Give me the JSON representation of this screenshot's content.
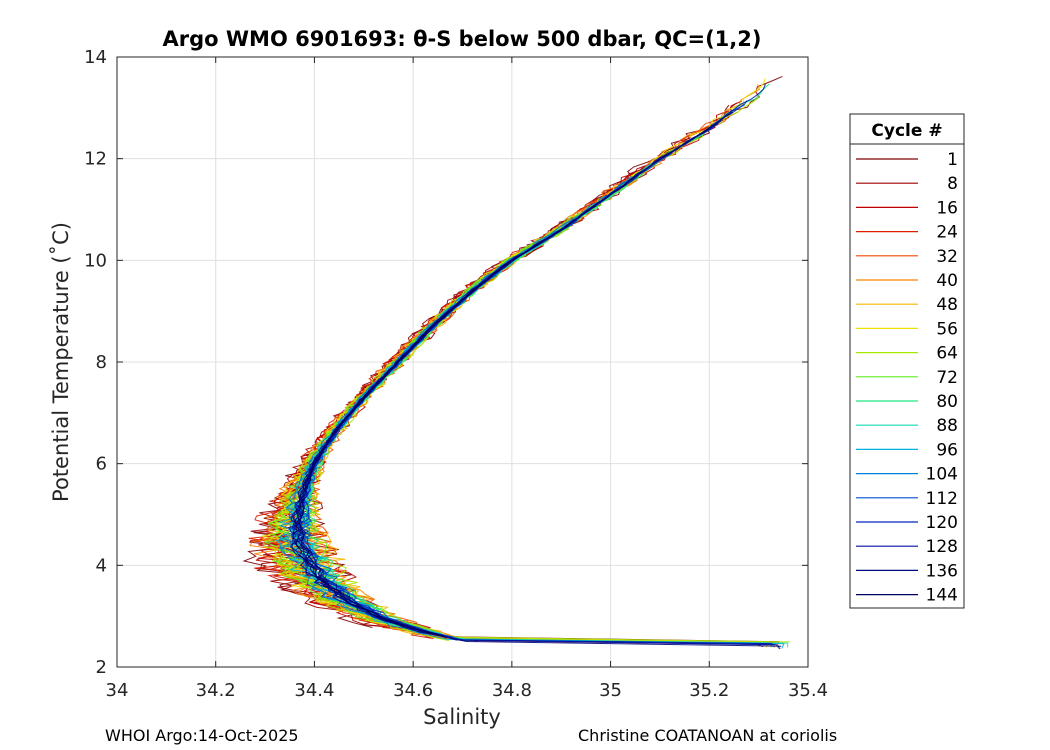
{
  "chart_data": {
    "type": "line",
    "title": "Argo WMO 6901693: θ-S below 500 dbar,  QC=(1,2)",
    "xlabel": "Salinity",
    "ylabel": "Potential Temperature (˚C)",
    "xlim": [
      34.0,
      35.4
    ],
    "ylim": [
      2,
      14
    ],
    "xticks": [
      "34",
      "34.2",
      "34.4",
      "34.6",
      "34.8",
      "35",
      "35.2",
      "35.4"
    ],
    "yticks": [
      "2",
      "4",
      "6",
      "8",
      "10",
      "12",
      "14"
    ],
    "grid": true,
    "legend_title": "Cycle #",
    "legend_position": "right-outside",
    "series": [
      {
        "name": "1",
        "color": "#7f0000"
      },
      {
        "name": "8",
        "color": "#9b0000"
      },
      {
        "name": "16",
        "color": "#c00000"
      },
      {
        "name": "24",
        "color": "#dd1c00"
      },
      {
        "name": "32",
        "color": "#f04a00"
      },
      {
        "name": "40",
        "color": "#f78000"
      },
      {
        "name": "48",
        "color": "#f2b800"
      },
      {
        "name": "56",
        "color": "#f0e000"
      },
      {
        "name": "64",
        "color": "#a8e800"
      },
      {
        "name": "72",
        "color": "#60ec20"
      },
      {
        "name": "80",
        "color": "#20e880"
      },
      {
        "name": "88",
        "color": "#10d8b0"
      },
      {
        "name": "96",
        "color": "#00b0e0"
      },
      {
        "name": "104",
        "color": "#0080d8"
      },
      {
        "name": "112",
        "color": "#0050d0"
      },
      {
        "name": "120",
        "color": "#0028c0"
      },
      {
        "name": "128",
        "color": "#0010a0"
      },
      {
        "name": "136",
        "color": "#000a80"
      },
      {
        "name": "144",
        "color": "#000060"
      }
    ],
    "mean_curve": {
      "x": [
        34.71,
        34.62,
        34.54,
        34.47,
        34.42,
        34.39,
        34.37,
        34.37,
        34.38,
        34.4,
        34.44,
        34.5,
        34.57,
        34.64,
        34.72,
        34.8,
        34.9,
        35.0,
        35.1,
        35.2,
        35.3,
        35.34
      ],
      "y": [
        2.5,
        2.7,
        2.95,
        3.3,
        3.7,
        4.1,
        4.5,
        5.0,
        5.5,
        6.0,
        6.6,
        7.3,
        8.0,
        8.7,
        9.4,
        10.0,
        10.6,
        11.3,
        12.0,
        12.6,
        13.3,
        13.7
      ]
    }
  },
  "footer": {
    "left": "WHOI Argo:14-Oct-2025",
    "right": "Christine COATANOAN at coriolis"
  }
}
